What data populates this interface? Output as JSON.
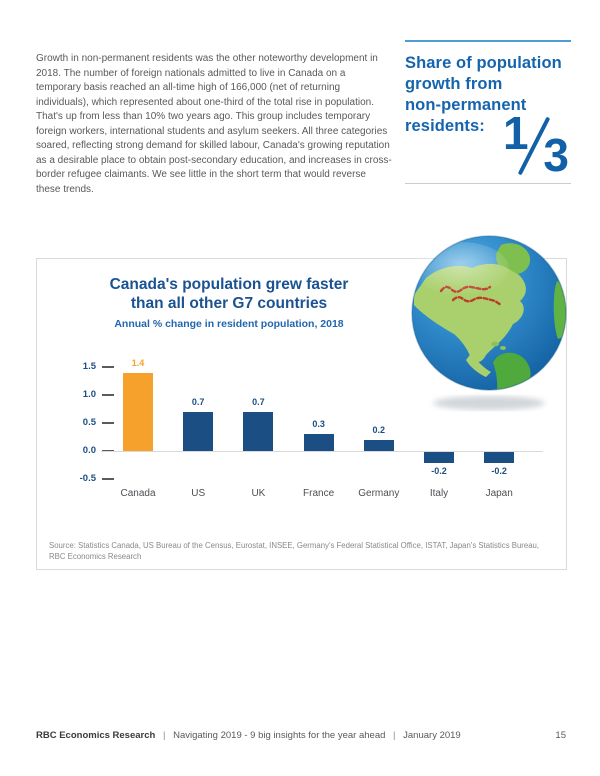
{
  "intro": {
    "paragraph": "Growth in non-permanent residents was the other noteworthy development in 2018. The number of foreign nationals admitted to live in Canada on a temporary basis reached an all-time high of 166,000 (net of returning individuals), which represented about one-third of the total rise in population. That's up from less than 10% two years ago. This group includes temporary foreign workers, international students and asylum seekers. All three categories soared, reflecting strong demand for skilled labour, Canada's growing reputation as a desirable place to obtain post-secondary education, and increases in cross-border refugee claimants. We see little in the short term that would reverse these trends."
  },
  "callout": {
    "heading_line1": "Share of population",
    "heading_line2": "growth from",
    "heading_line3": "non-permanent",
    "heading_line4": "residents:",
    "fraction_numerator": "1",
    "fraction_denominator": "3"
  },
  "chart": {
    "title_line1": "Canada's population grew faster",
    "title_line2": "than all other G7 countries",
    "subtitle": "Annual % change in resident population, 2018",
    "source_line1": "Source: Statistics Canada, US Bureau of the Census, Eurostat, INSEE, Germany's Federal Statistical Office, ISTAT, Japan's Statistics Bureau,",
    "source_line2": "RBC Economics Research"
  },
  "chart_data": {
    "type": "bar",
    "title": "Canada's population grew faster than all other G7 countries",
    "subtitle": "Annual % change in resident population, 2018",
    "categories": [
      "Canada",
      "US",
      "UK",
      "France",
      "Germany",
      "Italy",
      "Japan"
    ],
    "values": [
      1.4,
      0.7,
      0.7,
      0.3,
      0.2,
      -0.2,
      -0.2
    ],
    "bar_colors": [
      "#F6A12B",
      "#1B4E82",
      "#1B4E82",
      "#1B4E82",
      "#1B4E82",
      "#1B4E82",
      "#1B4E82"
    ],
    "yticks": [
      1.5,
      1.0,
      0.5,
      0.0,
      -0.5
    ],
    "ylim": [
      -0.5,
      1.5
    ],
    "xlabel": "",
    "ylabel": "",
    "grid": false,
    "legend": "none"
  },
  "footer": {
    "brand": "RBC Economics Research",
    "separator": "|",
    "tagline": "Navigating 2019 - 9 big insights for the year ahead",
    "date": "January 2019",
    "page_number": "15"
  },
  "colors": {
    "accent_blue": "#1565AE",
    "rule_blue": "#4D9CD3",
    "title_navy": "#1B5291",
    "bar_navy": "#1B4E82",
    "bar_orange": "#F6A12B",
    "body_text": "#58595B",
    "source_gray": "#88898C"
  },
  "icons": {
    "globe": "globe-earth-americas-icon"
  }
}
